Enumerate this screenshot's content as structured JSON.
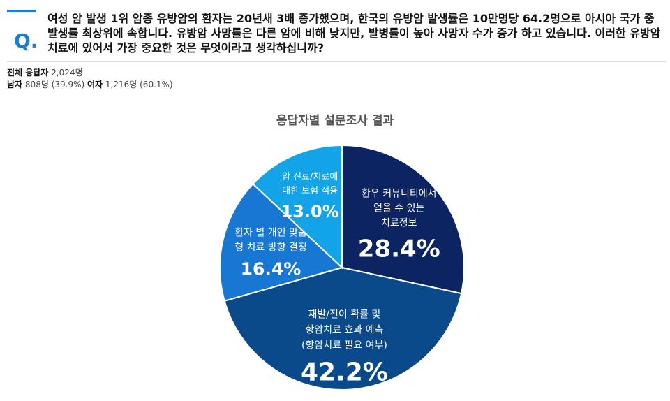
{
  "question": {
    "mark": "Q.",
    "text": "여성 암 발생 1위 암종 유방암의 환자는 20년새 3배 증가했으며, 한국의 유방암 발생률은 10만명당 64.2명으로 아시아 국가 중 발생률 최상위에 속합니다. 유방암 사망률은 다른 암에 비해 낮지만, 발병률이 높아 사망자 수가 증가 하고 있습니다. 이러한 유방암 치료에 있어서 가장 중요한 것은 무엇이라고 생각하십니까?"
  },
  "respondents": {
    "total_label": "전체 응답자",
    "total_value": "2,024명",
    "male_label": "남자",
    "male_value": "808명 (39.9%)",
    "female_label": "여자",
    "female_value": "1,216명 (60.1%)"
  },
  "chart_data": {
    "type": "pie",
    "title": "응답자별 설문조사 결과",
    "slices": [
      {
        "label": [
          "환우 커뮤니티에서",
          "얻을 수 있는",
          "치료정보"
        ],
        "value": 28.4,
        "display": "28.4%",
        "color": "#0c2461"
      },
      {
        "label": [
          "재발/전이 확률 및",
          "항암치료 효과 예측",
          "(항암치료 필요 여부)"
        ],
        "value": 42.2,
        "display": "42.2%",
        "color": "#0a4a8a"
      },
      {
        "label": [
          "환자 별 개인 맞춤",
          "형 치료 방향 결정"
        ],
        "value": 16.4,
        "display": "16.4%",
        "color": "#1877d2"
      },
      {
        "label": [
          "암 진료/치료에",
          "대한 보험 적용"
        ],
        "value": 13.0,
        "display": "13.0%",
        "color": "#12a4e6"
      }
    ]
  }
}
